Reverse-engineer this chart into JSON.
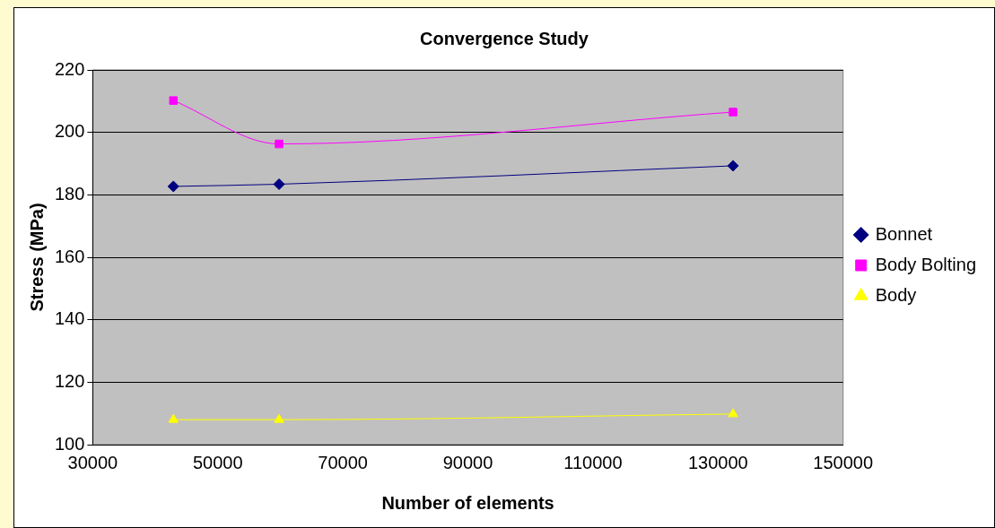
{
  "chart_data": {
    "type": "line",
    "title": "Convergence Study",
    "xlabel": "Number of elements",
    "ylabel": "Stress (MPa)",
    "x": [
      42900,
      59800,
      132400
    ],
    "series": [
      {
        "name": "Bonnet",
        "color": "#000080",
        "marker": "diamond",
        "values": [
          182.7,
          183.4,
          189.3
        ]
      },
      {
        "name": "Body Bolting",
        "color": "#ff00ff",
        "marker": "square",
        "values": [
          210.2,
          196.3,
          206.5
        ]
      },
      {
        "name": "Body",
        "color": "#ffff00",
        "marker": "triangle",
        "values": [
          108,
          108,
          109.8
        ]
      }
    ],
    "xlim": [
      30000,
      150000
    ],
    "xticks": [
      30000,
      50000,
      70000,
      90000,
      110000,
      130000,
      150000
    ],
    "ylim": [
      100,
      220
    ],
    "yticks": [
      100,
      120,
      140,
      160,
      180,
      200,
      220
    ],
    "grid": "y",
    "legend": "right"
  }
}
